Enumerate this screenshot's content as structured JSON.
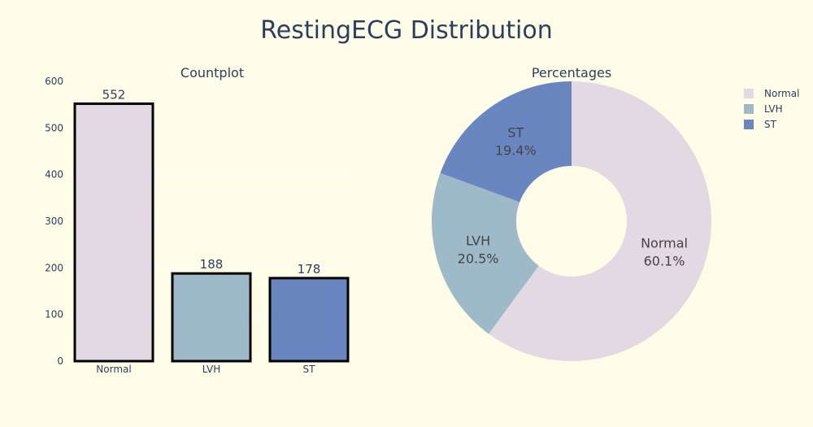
{
  "chart_data": {
    "title": "RestingECG Distribution",
    "subtitles": [
      "Countplot",
      "Percentages"
    ],
    "categories": [
      "Normal",
      "LVH",
      "ST"
    ],
    "colors": [
      "#e2d9e3",
      "#9eb9c7",
      "#6a86c1"
    ],
    "background": "#fffde7",
    "charts": [
      {
        "type": "bar",
        "values": [
          552,
          188,
          178
        ],
        "ylim": [
          0,
          600
        ],
        "yticks": [
          0,
          100,
          200,
          300,
          400,
          500,
          600
        ],
        "data_labels": [
          "552",
          "188",
          "178"
        ],
        "bar_outline": "#000000"
      },
      {
        "type": "pie",
        "hole": true,
        "slices": [
          {
            "label": "Normal",
            "percent": 60.1,
            "text": "60.1%"
          },
          {
            "label": "LVH",
            "percent": 20.5,
            "text": "20.5%"
          },
          {
            "label": "ST",
            "percent": 19.4,
            "text": "19.4%"
          }
        ],
        "legend": [
          "Normal",
          "LVH",
          "ST"
        ],
        "legend_position": "top-right"
      }
    ]
  }
}
